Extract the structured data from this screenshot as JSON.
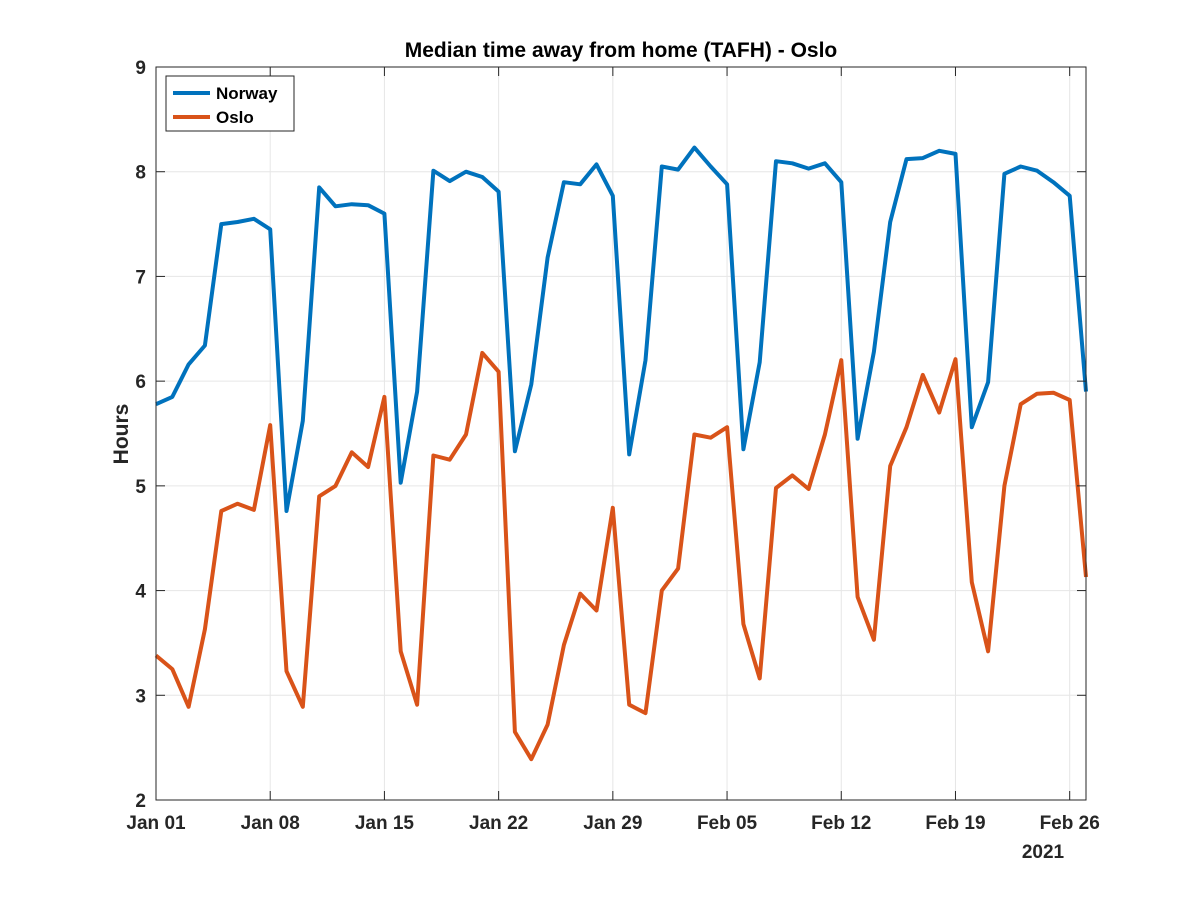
{
  "chart_data": {
    "type": "line",
    "title": "Median time away from home (TAFH) - Oslo",
    "xlabel": "",
    "ylabel": "Hours",
    "ylim": [
      2,
      9
    ],
    "yticks": [
      "2",
      "3",
      "4",
      "5",
      "6",
      "7",
      "8",
      "9"
    ],
    "xticks": [
      "Jan 01",
      "Jan 08",
      "Jan 15",
      "Jan 22",
      "Jan 29",
      "Feb 05",
      "Feb 12",
      "Feb 19",
      "Feb 26"
    ],
    "x_secondary_label": "2021",
    "x_start_day": 0,
    "x_end_day": 57,
    "grid": true,
    "legend_position": "top-left",
    "series": [
      {
        "name": "Norway",
        "color": "#0072BD",
        "values": [
          5.78,
          5.85,
          6.16,
          6.34,
          7.5,
          7.52,
          7.55,
          7.45,
          4.76,
          5.62,
          7.85,
          7.67,
          7.69,
          7.68,
          7.6,
          5.03,
          5.9,
          8.01,
          7.91,
          8.0,
          7.95,
          7.81,
          5.33,
          5.97,
          7.18,
          7.9,
          7.88,
          8.07,
          7.77,
          5.3,
          6.2,
          8.05,
          8.02,
          8.23,
          8.05,
          7.88,
          5.35,
          6.18,
          8.1,
          8.08,
          8.03,
          8.08,
          7.9,
          5.45,
          6.28,
          7.52,
          8.12,
          8.13,
          8.2,
          8.17,
          5.56,
          5.99,
          7.98,
          8.05,
          8.01,
          7.9,
          7.77,
          5.9
        ]
      },
      {
        "name": "Oslo",
        "color": "#D95319",
        "values": [
          3.38,
          3.25,
          2.89,
          3.63,
          4.76,
          4.83,
          4.77,
          5.58,
          3.23,
          2.89,
          4.9,
          5.0,
          5.32,
          5.18,
          5.85,
          3.42,
          2.91,
          5.29,
          5.25,
          5.49,
          6.27,
          6.09,
          2.65,
          2.39,
          2.72,
          3.48,
          3.97,
          3.81,
          4.79,
          2.91,
          2.83,
          4.0,
          4.21,
          5.49,
          5.46,
          5.56,
          3.68,
          3.16,
          4.98,
          5.1,
          4.97,
          5.49,
          6.2,
          3.94,
          3.53,
          5.19,
          5.56,
          6.06,
          5.7,
          6.21,
          4.08,
          3.42,
          5.0,
          5.78,
          5.88,
          5.89,
          5.82,
          4.13
        ]
      }
    ]
  }
}
